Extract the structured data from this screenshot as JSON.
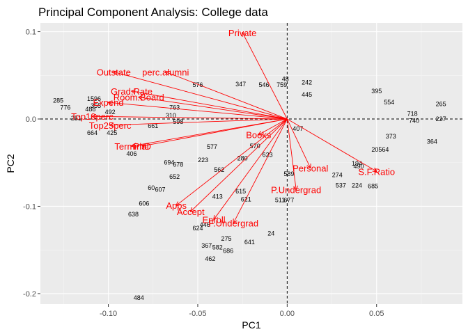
{
  "chart_data": {
    "type": "scatter",
    "title": "Principal Component Analysis: College data",
    "xlabel": "PC1",
    "ylabel": "PC2",
    "xlim": [
      -0.138,
      0.098
    ],
    "ylim": [
      -0.212,
      0.11
    ],
    "x_ticks": [
      -0.1,
      -0.05,
      0.0,
      0.05
    ],
    "x_tick_labels": [
      "-0.10",
      "-0.05",
      "0.00",
      "0.05"
    ],
    "y_ticks": [
      -0.2,
      -0.1,
      0.0,
      0.1
    ],
    "y_tick_labels": [
      "-0.2",
      "-0.1",
      "0.0",
      "0.1"
    ],
    "grid": true,
    "reference_lines": {
      "x": 0.0,
      "y": 0.0,
      "style": "dashed"
    },
    "colors": {
      "panel": "#ebebeb",
      "grid_major": "#ffffff",
      "grid_minor": "#f5f5f5",
      "arrow": "#ff0000",
      "obs_text": "#000000"
    },
    "loadings": [
      {
        "label": "Private",
        "x": -0.025,
        "y": 0.099
      },
      {
        "label": "Outstate",
        "x": -0.097,
        "y": 0.054
      },
      {
        "label": "perc.alumni",
        "x": -0.068,
        "y": 0.054
      },
      {
        "label": "Grad.Rate",
        "x": -0.087,
        "y": 0.032
      },
      {
        "label": "Room.Board",
        "x": -0.083,
        "y": 0.025
      },
      {
        "label": "Expend",
        "x": -0.1,
        "y": 0.019
      },
      {
        "label": "Top10perc",
        "x": -0.109,
        "y": 0.003
      },
      {
        "label": "Top25perc",
        "x": -0.099,
        "y": -0.007
      },
      {
        "label": "Terminal",
        "x": -0.087,
        "y": -0.031
      },
      {
        "label": "PhD",
        "x": -0.081,
        "y": -0.031
      },
      {
        "label": "Books",
        "x": -0.016,
        "y": -0.018
      },
      {
        "label": "Personal",
        "x": 0.013,
        "y": -0.056
      },
      {
        "label": "S.F.Ratio",
        "x": 0.05,
        "y": -0.06
      },
      {
        "label": "P.Undergrad",
        "x": 0.005,
        "y": -0.081
      },
      {
        "label": "Apps",
        "x": -0.062,
        "y": -0.099
      },
      {
        "label": "Accept",
        "x": -0.054,
        "y": -0.106
      },
      {
        "label": "Enroll",
        "x": -0.041,
        "y": -0.115
      },
      {
        "label": "F.Undergrad",
        "x": -0.03,
        "y": -0.119
      }
    ],
    "observations": [
      {
        "label": "48",
        "x": -0.001,
        "y": 0.046
      },
      {
        "label": "242",
        "x": 0.011,
        "y": 0.042
      },
      {
        "label": "347",
        "x": -0.026,
        "y": 0.04
      },
      {
        "label": "576",
        "x": -0.05,
        "y": 0.039
      },
      {
        "label": "546",
        "x": -0.013,
        "y": 0.039
      },
      {
        "label": "759",
        "x": -0.003,
        "y": 0.039
      },
      {
        "label": "395",
        "x": 0.05,
        "y": 0.032
      },
      {
        "label": "554",
        "x": 0.057,
        "y": 0.019
      },
      {
        "label": "265",
        "x": 0.086,
        "y": 0.017
      },
      {
        "label": "718",
        "x": 0.07,
        "y": 0.006
      },
      {
        "label": "227",
        "x": 0.086,
        "y": 0.0
      },
      {
        "label": "740",
        "x": 0.071,
        "y": -0.002
      },
      {
        "label": "364",
        "x": 0.081,
        "y": -0.026
      },
      {
        "label": "685",
        "x": 0.048,
        "y": -0.077
      },
      {
        "label": "285",
        "x": -0.128,
        "y": 0.021
      },
      {
        "label": "776",
        "x": -0.124,
        "y": 0.013
      },
      {
        "label": "1596",
        "x": -0.108,
        "y": 0.023
      },
      {
        "label": "355",
        "x": -0.107,
        "y": 0.015
      },
      {
        "label": "488",
        "x": -0.11,
        "y": 0.011
      },
      {
        "label": "492",
        "x": -0.099,
        "y": 0.008
      },
      {
        "label": "251",
        "x": -0.118,
        "y": 0.001
      },
      {
        "label": "664",
        "x": -0.109,
        "y": -0.016
      },
      {
        "label": "425",
        "x": -0.098,
        "y": -0.016
      },
      {
        "label": "661",
        "x": -0.075,
        "y": -0.008
      },
      {
        "label": "406",
        "x": -0.087,
        "y": -0.04
      },
      {
        "label": "577",
        "x": -0.042,
        "y": -0.032
      },
      {
        "label": "694",
        "x": -0.066,
        "y": -0.05
      },
      {
        "label": "678",
        "x": -0.061,
        "y": -0.052
      },
      {
        "label": "223",
        "x": -0.047,
        "y": -0.047
      },
      {
        "label": "652",
        "x": -0.063,
        "y": -0.066
      },
      {
        "label": "60",
        "x": -0.076,
        "y": -0.079
      },
      {
        "label": "607",
        "x": -0.071,
        "y": -0.081
      },
      {
        "label": "606",
        "x": -0.08,
        "y": -0.097
      },
      {
        "label": "638",
        "x": -0.086,
        "y": -0.109
      },
      {
        "label": "562",
        "x": -0.038,
        "y": -0.058
      },
      {
        "label": "413",
        "x": -0.039,
        "y": -0.089
      },
      {
        "label": "615",
        "x": -0.026,
        "y": -0.083
      },
      {
        "label": "621",
        "x": -0.023,
        "y": -0.092
      },
      {
        "label": "624",
        "x": -0.05,
        "y": -0.125
      },
      {
        "label": "446",
        "x": -0.046,
        "y": -0.121
      },
      {
        "label": "275",
        "x": -0.034,
        "y": -0.137
      },
      {
        "label": "641",
        "x": -0.021,
        "y": -0.141
      },
      {
        "label": "24",
        "x": -0.009,
        "y": -0.131
      },
      {
        "label": "367",
        "x": -0.045,
        "y": -0.145
      },
      {
        "label": "582",
        "x": -0.039,
        "y": -0.147
      },
      {
        "label": "686",
        "x": -0.033,
        "y": -0.151
      },
      {
        "label": "462",
        "x": -0.043,
        "y": -0.16
      },
      {
        "label": "484",
        "x": -0.083,
        "y": -0.205
      },
      {
        "label": "224",
        "x": 0.039,
        "y": -0.076
      },
      {
        "label": "537",
        "x": 0.03,
        "y": -0.076
      },
      {
        "label": "274",
        "x": 0.028,
        "y": -0.064
      },
      {
        "label": "194",
        "x": 0.039,
        "y": -0.051
      },
      {
        "label": "490",
        "x": 0.04,
        "y": -0.054
      },
      {
        "label": "20564",
        "x": 0.052,
        "y": -0.035
      },
      {
        "label": "373",
        "x": 0.058,
        "y": -0.02
      },
      {
        "label": "511",
        "x": -0.004,
        "y": -0.093
      },
      {
        "label": "677",
        "x": 0.001,
        "y": -0.093
      },
      {
        "label": "589",
        "x": 0.001,
        "y": -0.063
      },
      {
        "label": "623",
        "x": -0.011,
        "y": -0.041
      },
      {
        "label": "280",
        "x": -0.025,
        "y": -0.045
      },
      {
        "label": "407",
        "x": 0.006,
        "y": -0.011
      },
      {
        "label": "570",
        "x": -0.018,
        "y": -0.031
      },
      {
        "label": "445",
        "x": 0.011,
        "y": 0.028
      },
      {
        "label": "763",
        "x": -0.063,
        "y": 0.013
      },
      {
        "label": "310",
        "x": -0.065,
        "y": 0.004
      },
      {
        "label": "598",
        "x": -0.061,
        "y": -0.003
      }
    ]
  }
}
